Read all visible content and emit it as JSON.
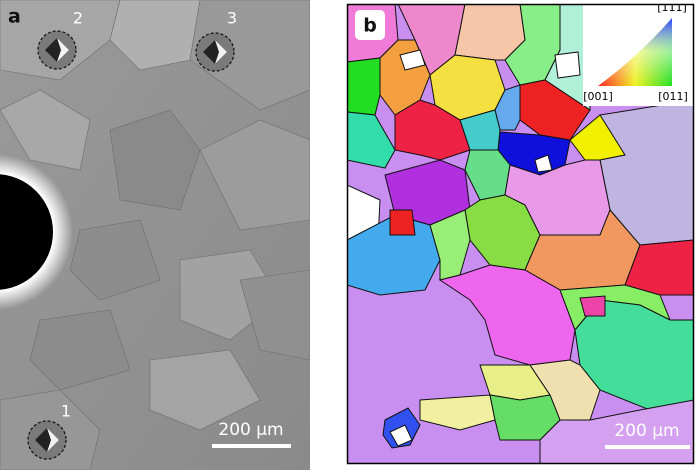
{
  "panels": [
    {
      "label": "a",
      "indents": [
        "1",
        "2",
        "3"
      ],
      "scale_bar": "200 µm"
    },
    {
      "label": "b",
      "scale_bar": "200 µm",
      "legend": {
        "top": "[111]",
        "bottom_left": "[001]",
        "bottom_right": "[011]"
      }
    }
  ]
}
